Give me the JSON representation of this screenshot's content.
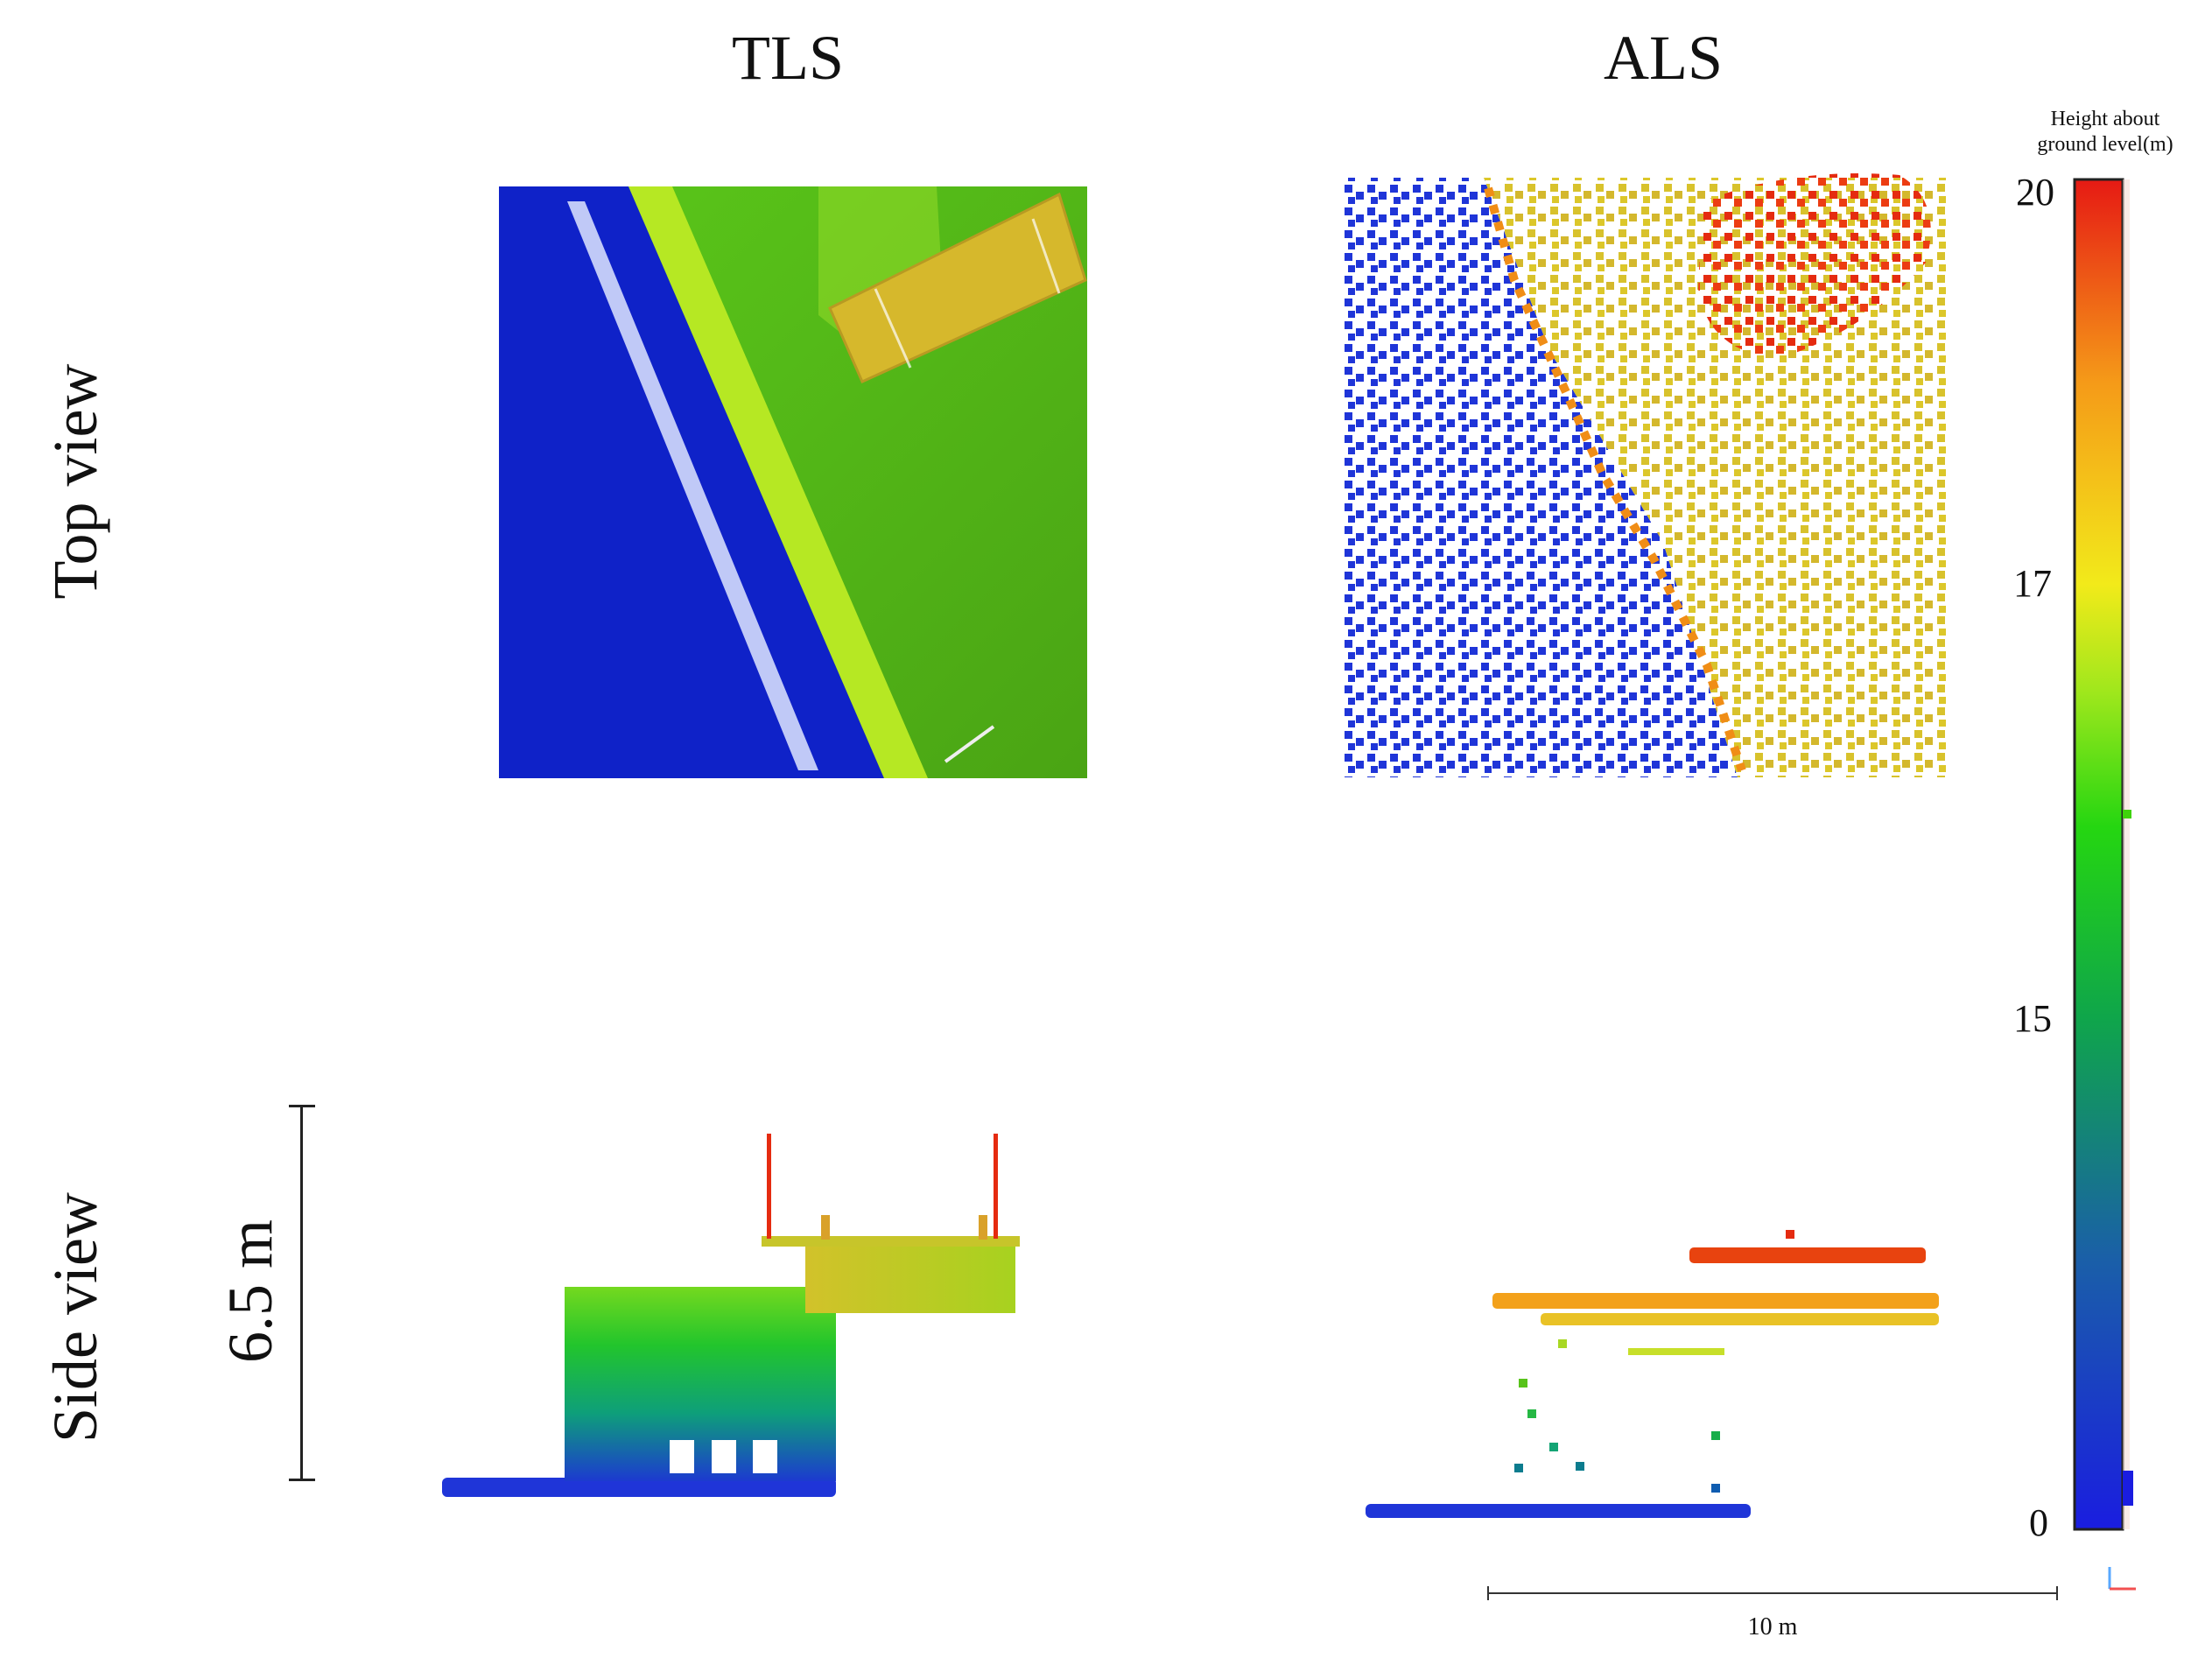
{
  "columns": {
    "tls": "TLS",
    "als": "ALS"
  },
  "rows": {
    "top": "Top view",
    "side": "Side view"
  },
  "side_scale_label": "6.5 m",
  "colorbar": {
    "title_line1": "Height about",
    "title_line2": "ground level(m)",
    "ticks": [
      "20",
      "17",
      "15",
      "0"
    ]
  },
  "horizontal_scale_label": "10 m",
  "colors": {
    "blue": "#1a2fd6",
    "green": "#3fd30b",
    "yellow": "#d9c22a",
    "orange": "#f08d16",
    "red": "#e52b10"
  }
}
